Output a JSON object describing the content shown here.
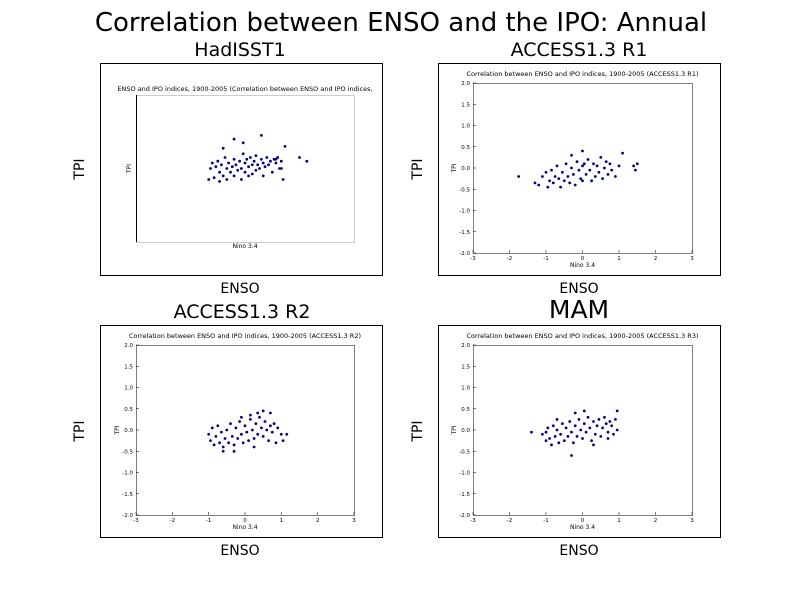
{
  "figure": {
    "title": "Correlation between ENSO and the IPO: Annual"
  },
  "chart_data": [
    {
      "type": "scatter",
      "panel_title": "HadISST1",
      "inner_title": "ENSO and IPO indices, 1900-2005 (Correlation between ENSO and IPO indices,",
      "outer_xlabel": "ENSO",
      "outer_ylabel": "TPI",
      "xlabel": "Nino 3.4",
      "ylabel": "TPI",
      "xlim": [
        -3,
        3
      ],
      "ylim": [
        -2,
        2
      ],
      "show_ticks": false,
      "x_ticks": [],
      "y_ticks": [],
      "point_color": "#000080",
      "points": [
        [
          -1.0,
          -0.3
        ],
        [
          -0.95,
          0.0
        ],
        [
          -0.9,
          0.15
        ],
        [
          -0.85,
          -0.25
        ],
        [
          -0.8,
          0.05
        ],
        [
          -0.75,
          0.2
        ],
        [
          -0.7,
          -0.1
        ],
        [
          -0.7,
          -0.35
        ],
        [
          -0.65,
          0.1
        ],
        [
          -0.6,
          -0.2
        ],
        [
          -0.55,
          0.3
        ],
        [
          -0.5,
          0.0
        ],
        [
          -0.5,
          -0.3
        ],
        [
          -0.45,
          0.15
        ],
        [
          -0.4,
          -0.1
        ],
        [
          -0.35,
          0.05
        ],
        [
          -0.3,
          0.25
        ],
        [
          -0.3,
          -0.2
        ],
        [
          -0.25,
          0.1
        ],
        [
          -0.2,
          -0.05
        ],
        [
          -0.15,
          0.2
        ],
        [
          -0.1,
          -0.3
        ],
        [
          -0.1,
          0.0
        ],
        [
          -0.05,
          0.4
        ],
        [
          0.0,
          0.15
        ],
        [
          0.0,
          -0.1
        ],
        [
          0.05,
          0.25
        ],
        [
          0.1,
          -0.2
        ],
        [
          0.1,
          0.05
        ],
        [
          0.15,
          0.3
        ],
        [
          0.2,
          0.1
        ],
        [
          0.2,
          -0.15
        ],
        [
          0.25,
          0.2
        ],
        [
          0.3,
          -0.05
        ],
        [
          0.3,
          0.35
        ],
        [
          0.35,
          0.1
        ],
        [
          0.4,
          0.0
        ],
        [
          0.45,
          0.25
        ],
        [
          0.5,
          0.15
        ],
        [
          0.5,
          -0.2
        ],
        [
          0.55,
          0.05
        ],
        [
          0.6,
          0.3
        ],
        [
          0.65,
          0.1
        ],
        [
          0.7,
          0.2
        ],
        [
          0.75,
          -0.1
        ],
        [
          0.8,
          0.25
        ],
        [
          0.85,
          0.15
        ],
        [
          0.9,
          0.3
        ],
        [
          1.0,
          0.2
        ],
        [
          1.0,
          0.0
        ],
        [
          1.05,
          -0.3
        ],
        [
          -0.3,
          0.8
        ],
        [
          -0.05,
          0.7
        ],
        [
          0.45,
          0.9
        ],
        [
          0.85,
          0.25
        ],
        [
          0.95,
          0.0
        ],
        [
          1.1,
          0.6
        ],
        [
          1.5,
          0.3
        ],
        [
          1.7,
          0.2
        ],
        [
          -0.6,
          0.55
        ]
      ]
    },
    {
      "type": "scatter",
      "panel_title": "ACCESS1.3 R1",
      "inner_title": "Correlation between ENSO and IPO indices, 1900-2005 (ACCESS1.3 R1)",
      "outer_xlabel": "ENSO",
      "outer_ylabel": "TPI",
      "xlabel": "Nino 3.4",
      "ylabel": "TPI",
      "xlim": [
        -3,
        3
      ],
      "ylim": [
        -2,
        2
      ],
      "show_ticks": true,
      "x_ticks": [
        "-3",
        "-2",
        "-1",
        "0",
        "1",
        "2",
        "3"
      ],
      "y_ticks": [
        "2.0",
        "1.5",
        "1.0",
        "0.5",
        "0.0",
        "-0.5",
        "-1.0",
        "-1.5",
        "-2.0"
      ],
      "point_color": "#000080",
      "points": [
        [
          -1.75,
          -0.2
        ],
        [
          -1.3,
          -0.35
        ],
        [
          -1.2,
          -0.4
        ],
        [
          -1.1,
          -0.2
        ],
        [
          -1.0,
          -0.1
        ],
        [
          -0.95,
          -0.45
        ],
        [
          -0.9,
          -0.3
        ],
        [
          -0.85,
          -0.05
        ],
        [
          -0.8,
          -0.35
        ],
        [
          -0.75,
          -0.2
        ],
        [
          -0.7,
          0.05
        ],
        [
          -0.65,
          -0.25
        ],
        [
          -0.6,
          -0.45
        ],
        [
          -0.55,
          -0.1
        ],
        [
          -0.5,
          -0.3
        ],
        [
          -0.45,
          0.1
        ],
        [
          -0.4,
          -0.2
        ],
        [
          -0.35,
          -0.35
        ],
        [
          -0.3,
          0.0
        ],
        [
          -0.25,
          -0.15
        ],
        [
          -0.2,
          -0.4
        ],
        [
          -0.15,
          0.15
        ],
        [
          -0.1,
          -0.05
        ],
        [
          -0.05,
          -0.25
        ],
        [
          0.0,
          0.05
        ],
        [
          0.0,
          -0.3
        ],
        [
          0.05,
          0.1
        ],
        [
          0.1,
          -0.15
        ],
        [
          0.15,
          0.2
        ],
        [
          0.2,
          -0.05
        ],
        [
          0.25,
          -0.3
        ],
        [
          0.3,
          0.1
        ],
        [
          0.35,
          -0.2
        ],
        [
          0.4,
          0.05
        ],
        [
          0.45,
          -0.1
        ],
        [
          0.5,
          0.25
        ],
        [
          0.55,
          -0.25
        ],
        [
          0.6,
          0.0
        ],
        [
          0.65,
          0.15
        ],
        [
          0.7,
          -0.15
        ],
        [
          0.75,
          0.1
        ],
        [
          0.8,
          -0.05
        ],
        [
          0.9,
          -0.2
        ],
        [
          1.0,
          0.05
        ],
        [
          1.1,
          0.35
        ],
        [
          1.4,
          0.05
        ],
        [
          1.45,
          -0.05
        ],
        [
          1.5,
          0.1
        ],
        [
          -0.3,
          0.3
        ],
        [
          0.0,
          0.4
        ]
      ]
    },
    {
      "type": "scatter",
      "panel_title": "ACCESS1.3 R2",
      "inner_title": "Correlation between ENSO and IPO indices, 1900-2005 (ACCESS1.3 R2)",
      "outer_xlabel": "ENSO",
      "outer_ylabel": "TPI",
      "xlabel": "Nino 3.4",
      "ylabel": "TPI",
      "xlim": [
        -3,
        3
      ],
      "ylim": [
        -2,
        2
      ],
      "show_ticks": true,
      "x_ticks": [
        "-3",
        "-2",
        "-1",
        "0",
        "1",
        "2",
        "3"
      ],
      "y_ticks": [
        "2.0",
        "1.5",
        "1.0",
        "0.5",
        "0.0",
        "-0.5",
        "-1.0",
        "-1.5",
        "-2.0"
      ],
      "point_color": "#000080",
      "points": [
        [
          -1.0,
          -0.1
        ],
        [
          -0.95,
          -0.25
        ],
        [
          -0.9,
          0.05
        ],
        [
          -0.85,
          -0.35
        ],
        [
          -0.8,
          -0.15
        ],
        [
          -0.75,
          0.1
        ],
        [
          -0.7,
          -0.3
        ],
        [
          -0.65,
          -0.05
        ],
        [
          -0.6,
          -0.4
        ],
        [
          -0.55,
          -0.2
        ],
        [
          -0.5,
          0.0
        ],
        [
          -0.45,
          -0.3
        ],
        [
          -0.4,
          0.15
        ],
        [
          -0.35,
          -0.15
        ],
        [
          -0.3,
          -0.35
        ],
        [
          -0.25,
          0.05
        ],
        [
          -0.2,
          -0.2
        ],
        [
          -0.15,
          0.2
        ],
        [
          -0.1,
          -0.1
        ],
        [
          -0.05,
          -0.3
        ],
        [
          0.0,
          0.1
        ],
        [
          0.05,
          -0.05
        ],
        [
          0.1,
          -0.25
        ],
        [
          0.15,
          0.25
        ],
        [
          0.2,
          0.0
        ],
        [
          0.25,
          -0.2
        ],
        [
          0.3,
          0.15
        ],
        [
          0.35,
          -0.1
        ],
        [
          0.4,
          0.3
        ],
        [
          0.45,
          0.05
        ],
        [
          0.5,
          -0.15
        ],
        [
          0.55,
          0.2
        ],
        [
          0.6,
          0.0
        ],
        [
          0.65,
          -0.25
        ],
        [
          0.7,
          0.1
        ],
        [
          0.75,
          -0.05
        ],
        [
          0.8,
          0.15
        ],
        [
          0.85,
          -0.3
        ],
        [
          0.9,
          0.05
        ],
        [
          1.0,
          -0.1
        ],
        [
          1.05,
          -0.25
        ],
        [
          1.15,
          -0.1
        ],
        [
          0.35,
          0.4
        ],
        [
          0.5,
          0.45
        ],
        [
          0.15,
          0.35
        ],
        [
          -0.1,
          0.3
        ],
        [
          -0.6,
          -0.5
        ],
        [
          -0.3,
          -0.5
        ],
        [
          0.25,
          -0.4
        ],
        [
          0.7,
          0.4
        ]
      ]
    },
    {
      "type": "scatter",
      "panel_title": "MAM",
      "inner_title": "Correlation between ENSO and IPO indices, 1900-2005 (ACCESS1.3 R3)",
      "outer_xlabel": "ENSO",
      "outer_ylabel": "TPI",
      "xlabel": "Nino 3.4",
      "ylabel": "TPI",
      "xlim": [
        -3,
        3
      ],
      "ylim": [
        -2,
        2
      ],
      "show_ticks": true,
      "x_ticks": [
        "-3",
        "-2",
        "-1",
        "0",
        "1",
        "2",
        "3"
      ],
      "y_ticks": [
        "2.0",
        "1.5",
        "1.0",
        "0.5",
        "0.0",
        "-0.5",
        "-1.0",
        "-1.5",
        "-2.0"
      ],
      "point_color": "#000080",
      "points": [
        [
          -1.4,
          -0.05
        ],
        [
          -1.1,
          -0.1
        ],
        [
          -1.0,
          -0.25
        ],
        [
          -0.95,
          0.05
        ],
        [
          -0.9,
          -0.2
        ],
        [
          -0.85,
          -0.35
        ],
        [
          -0.8,
          0.1
        ],
        [
          -0.75,
          -0.15
        ],
        [
          -0.7,
          0.0
        ],
        [
          -0.65,
          -0.3
        ],
        [
          -0.6,
          -0.1
        ],
        [
          -0.55,
          0.15
        ],
        [
          -0.5,
          -0.25
        ],
        [
          -0.45,
          0.05
        ],
        [
          -0.4,
          -0.15
        ],
        [
          -0.35,
          0.2
        ],
        [
          -0.3,
          -0.05
        ],
        [
          -0.25,
          -0.3
        ],
        [
          -0.2,
          0.1
        ],
        [
          -0.15,
          -0.15
        ],
        [
          -0.1,
          0.25
        ],
        [
          -0.05,
          0.0
        ],
        [
          0.0,
          -0.2
        ],
        [
          0.05,
          0.15
        ],
        [
          0.1,
          -0.05
        ],
        [
          0.15,
          0.3
        ],
        [
          0.2,
          0.05
        ],
        [
          0.25,
          -0.25
        ],
        [
          0.3,
          0.2
        ],
        [
          0.35,
          -0.1
        ],
        [
          0.4,
          0.1
        ],
        [
          0.45,
          0.25
        ],
        [
          0.5,
          -0.15
        ],
        [
          0.55,
          0.05
        ],
        [
          0.6,
          0.3
        ],
        [
          0.65,
          0.15
        ],
        [
          0.7,
          -0.05
        ],
        [
          0.75,
          0.2
        ],
        [
          0.8,
          0.1
        ],
        [
          0.85,
          -0.1
        ],
        [
          0.9,
          0.25
        ],
        [
          0.95,
          0.0
        ],
        [
          -0.3,
          -0.6
        ],
        [
          -0.2,
          0.4
        ],
        [
          0.05,
          0.45
        ],
        [
          0.95,
          0.45
        ],
        [
          -0.7,
          0.25
        ],
        [
          0.3,
          -0.35
        ],
        [
          0.7,
          -0.2
        ],
        [
          -1.0,
          -0.05
        ]
      ]
    }
  ]
}
